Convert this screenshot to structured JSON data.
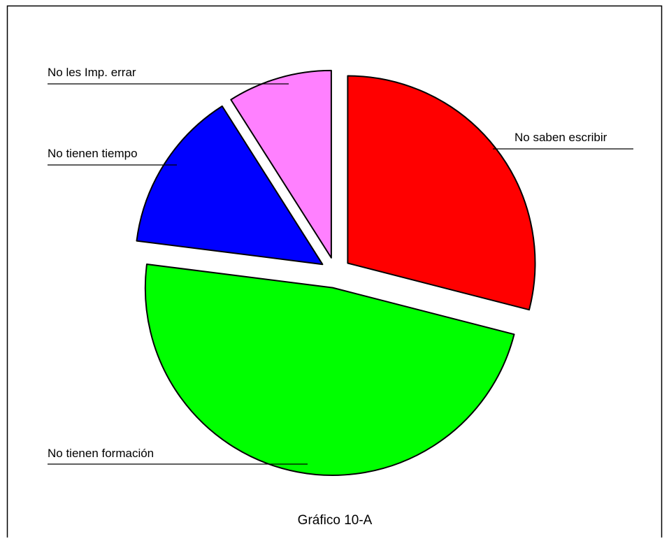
{
  "chart_data": {
    "type": "pie",
    "title": "Gráfico 10-A",
    "exploded": true,
    "start_angle_deg": 0,
    "direction": "clockwise",
    "slices": [
      {
        "label": "No saben escribir",
        "value": 29,
        "color": "#ff0000"
      },
      {
        "label": "No tienen formación",
        "value": 48,
        "color": "#00ff00"
      },
      {
        "label": "No tienen tiempo",
        "value": 14,
        "color": "#0000ff"
      },
      {
        "label": "No les Imp. errar",
        "value": 9,
        "color": "#ff80ff"
      }
    ]
  }
}
